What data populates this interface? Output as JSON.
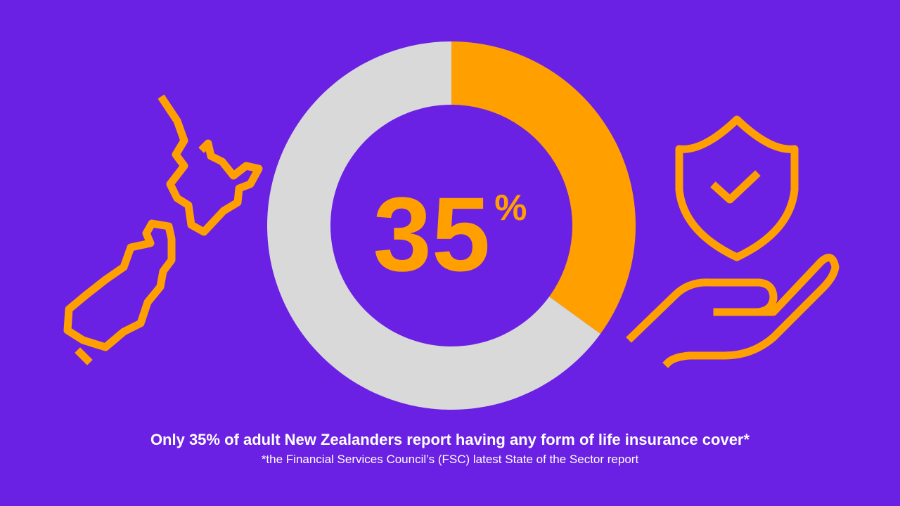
{
  "chart_data": {
    "type": "donut",
    "series": [
      {
        "values": [
          35,
          65
        ],
        "colors": [
          "#ffa000",
          "#d9d9d9"
        ],
        "value_labels": [
          "35%",
          null
        ]
      }
    ],
    "title": "Only 35% of adult New Zealanders report having any form of life insurance cover*",
    "footnote": "*the Financial Services Council’s (FSC) latest State of the Sector report"
  }
}
